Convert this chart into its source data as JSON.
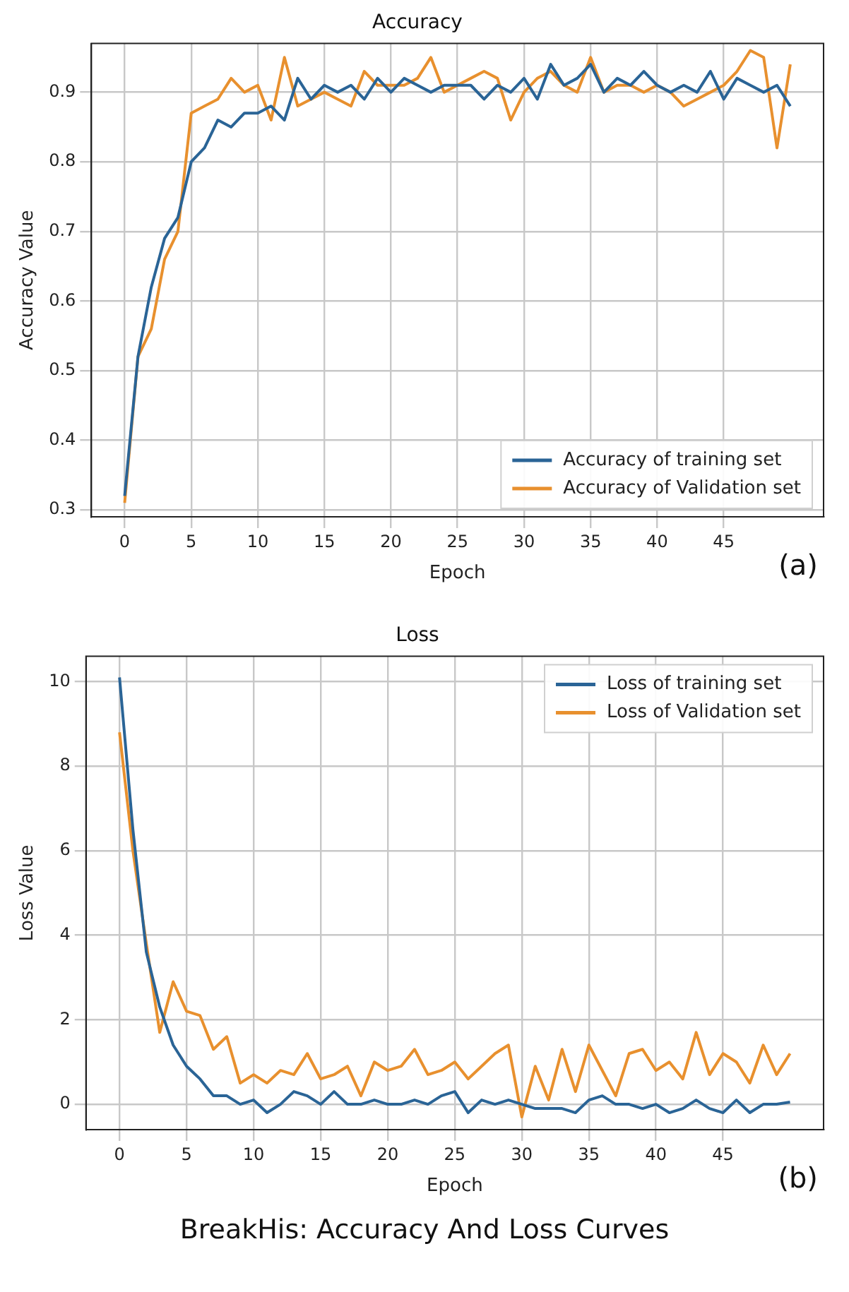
{
  "chart_data": [
    {
      "type": "line",
      "title": "Accuracy",
      "xlabel": "Epoch",
      "ylabel": "Accuracy Value",
      "x": [
        0,
        1,
        2,
        3,
        4,
        5,
        6,
        7,
        8,
        9,
        10,
        11,
        12,
        13,
        14,
        15,
        16,
        17,
        18,
        19,
        20,
        21,
        22,
        23,
        24,
        25,
        26,
        27,
        28,
        29,
        30,
        31,
        32,
        33,
        34,
        35,
        36,
        37,
        38,
        39,
        40,
        41,
        42,
        43,
        44,
        45,
        46,
        47,
        48,
        49,
        50
      ],
      "series": [
        {
          "name": "Accuracy of training set",
          "color": "#2a6496",
          "values": [
            0.32,
            0.52,
            0.62,
            0.69,
            0.72,
            0.8,
            0.82,
            0.86,
            0.85,
            0.87,
            0.87,
            0.88,
            0.86,
            0.92,
            0.89,
            0.91,
            0.9,
            0.91,
            0.89,
            0.92,
            0.9,
            0.92,
            0.91,
            0.9,
            0.91,
            0.91,
            0.91,
            0.89,
            0.91,
            0.9,
            0.92,
            0.89,
            0.94,
            0.91,
            0.92,
            0.94,
            0.9,
            0.92,
            0.91,
            0.93,
            0.91,
            0.9,
            0.91,
            0.9,
            0.93,
            0.89,
            0.92,
            0.91,
            0.9,
            0.91,
            0.88
          ]
        },
        {
          "name": "Accuracy of Validation set",
          "color": "#e8902e",
          "values": [
            0.31,
            0.52,
            0.56,
            0.66,
            0.7,
            0.87,
            0.88,
            0.89,
            0.92,
            0.9,
            0.91,
            0.86,
            0.95,
            0.88,
            0.89,
            0.9,
            0.89,
            0.88,
            0.93,
            0.91,
            0.91,
            0.91,
            0.92,
            0.95,
            0.9,
            0.91,
            0.92,
            0.93,
            0.92,
            0.86,
            0.9,
            0.92,
            0.93,
            0.91,
            0.9,
            0.95,
            0.9,
            0.91,
            0.91,
            0.9,
            0.91,
            0.9,
            0.88,
            0.89,
            0.9,
            0.91,
            0.93,
            0.96,
            0.95,
            0.82,
            0.94
          ]
        }
      ],
      "xlim": [
        -2.5,
        52.5
      ],
      "xticks": [
        0,
        5,
        10,
        15,
        20,
        25,
        30,
        35,
        40,
        45
      ],
      "ylim": [
        0.29,
        0.97
      ],
      "yticks": [
        0.3,
        0.4,
        0.5,
        0.6,
        0.7,
        0.8,
        0.9
      ],
      "grid": true,
      "legend": "bottom right",
      "marker": "none",
      "line_style": "solid",
      "annotations": [
        "(a)"
      ]
    },
    {
      "type": "line",
      "title": "Loss",
      "xlabel": "Epoch",
      "ylabel": "Loss Value",
      "x": [
        0,
        1,
        2,
        3,
        4,
        5,
        6,
        7,
        8,
        9,
        10,
        11,
        12,
        13,
        14,
        15,
        16,
        17,
        18,
        19,
        20,
        21,
        22,
        23,
        24,
        25,
        26,
        27,
        28,
        29,
        30,
        31,
        32,
        33,
        34,
        35,
        36,
        37,
        38,
        39,
        40,
        41,
        42,
        43,
        44,
        45,
        46,
        47,
        48,
        49,
        50
      ],
      "series": [
        {
          "name": "Loss of training set",
          "color": "#2a6496",
          "values": [
            10.1,
            6.5,
            3.6,
            2.3,
            1.4,
            0.9,
            0.6,
            0.2,
            0.2,
            0.0,
            0.1,
            -0.2,
            0.0,
            0.3,
            0.2,
            0.0,
            0.3,
            0.0,
            0.0,
            0.1,
            0.0,
            0.0,
            0.1,
            0.0,
            0.2,
            0.3,
            -0.2,
            0.1,
            0.0,
            0.1,
            0.0,
            -0.1,
            -0.1,
            -0.1,
            -0.2,
            0.1,
            0.2,
            0.0,
            0.0,
            -0.1,
            0.0,
            -0.2,
            -0.1,
            0.1,
            -0.1,
            -0.2,
            0.1,
            -0.2,
            0.0,
            0.0,
            0.05
          ]
        },
        {
          "name": "Loss of Validation set",
          "color": "#e8902e",
          "values": [
            8.8,
            6.0,
            3.8,
            1.7,
            2.9,
            2.2,
            2.1,
            1.3,
            1.6,
            0.5,
            0.7,
            0.5,
            0.8,
            0.7,
            1.2,
            0.6,
            0.7,
            0.9,
            0.2,
            1.0,
            0.8,
            0.9,
            1.3,
            0.7,
            0.8,
            1.0,
            0.6,
            0.9,
            1.2,
            1.4,
            -0.3,
            0.9,
            0.1,
            1.3,
            0.3,
            1.4,
            0.8,
            0.2,
            1.2,
            1.3,
            0.8,
            1.0,
            0.6,
            1.7,
            0.7,
            1.2,
            1.0,
            0.5,
            1.4,
            0.7,
            1.2
          ]
        }
      ],
      "xlim": [
        -2.5,
        52.5
      ],
      "xticks": [
        0,
        5,
        10,
        15,
        20,
        25,
        30,
        35,
        40,
        45
      ],
      "ylim": [
        -0.6,
        10.6
      ],
      "yticks": [
        0,
        2,
        4,
        6,
        8,
        10
      ],
      "grid": true,
      "legend": "top right",
      "marker": "none",
      "line_style": "solid",
      "annotations": [
        "(b)",
        "BreakHis: Accuracy And Loss Curves"
      ]
    }
  ]
}
